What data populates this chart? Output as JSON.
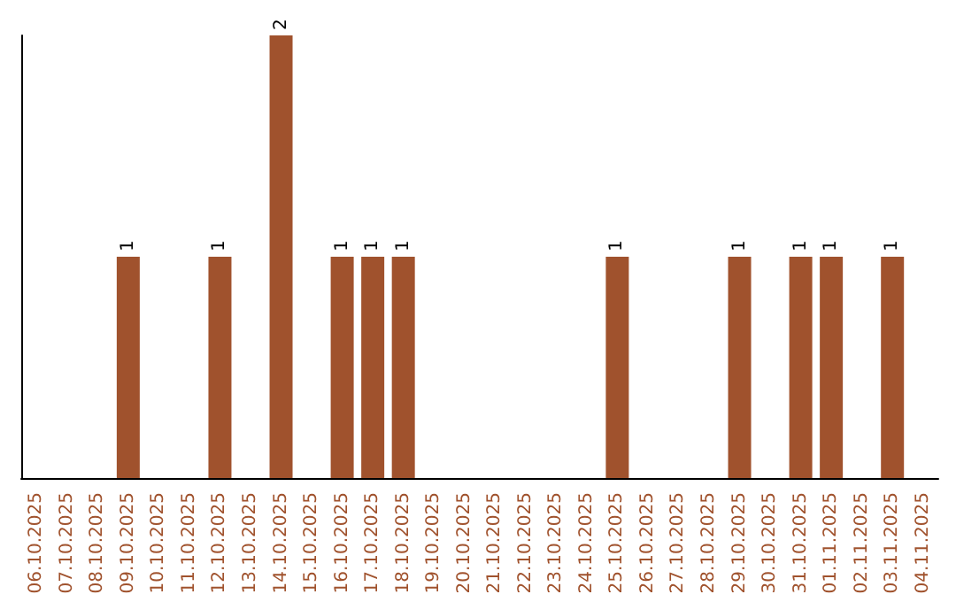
{
  "chart_data": {
    "type": "bar",
    "categories": [
      "06.10.2025",
      "07.10.2025",
      "08.10.2025",
      "09.10.2025",
      "10.10.2025",
      "11.10.2025",
      "12.10.2025",
      "13.10.2025",
      "14.10.2025",
      "15.10.2025",
      "16.10.2025",
      "17.10.2025",
      "18.10.2025",
      "19.10.2025",
      "20.10.2025",
      "21.10.2025",
      "22.10.2025",
      "23.10.2025",
      "24.10.2025",
      "25.10.2025",
      "26.10.2025",
      "27.10.2025",
      "28.10.2025",
      "29.10.2025",
      "30.10.2025",
      "31.10.2025",
      "01.11.2025",
      "02.11.2025",
      "03.11.2025",
      "04.11.2025"
    ],
    "values": [
      0,
      0,
      0,
      1,
      0,
      0,
      1,
      0,
      2,
      0,
      1,
      1,
      1,
      0,
      0,
      0,
      0,
      0,
      0,
      1,
      0,
      0,
      0,
      1,
      0,
      1,
      1,
      0,
      1,
      0
    ],
    "color": "#a0522d",
    "value_labels": [
      null,
      null,
      null,
      "1",
      null,
      null,
      "1",
      null,
      "2",
      null,
      "1",
      "1",
      "1",
      null,
      null,
      null,
      null,
      null,
      null,
      "1",
      null,
      null,
      null,
      "1",
      null,
      "1",
      "1",
      null,
      "1",
      null
    ],
    "tick_labels": "x",
    "grid": false
  }
}
